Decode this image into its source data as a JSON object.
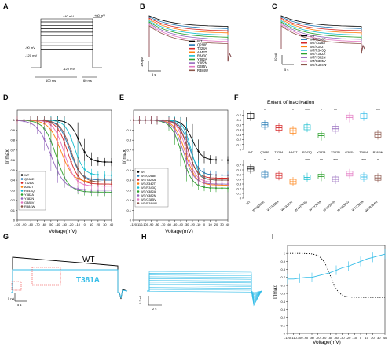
{
  "colors": {
    "WT": "#000000",
    "Q268E": "#1f77b4",
    "T328A": "#d62728",
    "A342T": "#ff7f0e",
    "R343Q": "#17becf",
    "Y382A": "#2ca02c",
    "Y382N": "#9467bd",
    "R384W": "#8c564b",
    "T381A": "#35bde8",
    "G385V": "#e377c2"
  },
  "panels": {
    "A": {
      "label": "A",
      "text_top": "+40 mV",
      "text_right": "+60 mV",
      "text_left1": "-90 mV",
      "text_left2": "-120 mV",
      "text_bottom": "-120 mV",
      "time1": "100 ms",
      "time2": "60 ms"
    },
    "B": {
      "label": "B",
      "legend": [
        "WT",
        "Q268E",
        "T328A",
        "A342T",
        "R343Q",
        "Y382A",
        "Y382N",
        "G385V",
        "R384W"
      ],
      "scale_v": "100 pA",
      "scale_t": "5 s"
    },
    "C": {
      "label": "C",
      "legend": [
        "WT",
        "WT/Q268E",
        "WT/T328A",
        "WT/A342T",
        "WT/R343Q",
        "WT/Y382A",
        "WT/Y382N",
        "WT/G385V",
        "WT/R384W"
      ],
      "scale_v": "50 pA",
      "scale_t": "5 s"
    },
    "D": {
      "label": "D",
      "ylabel": "I/Imax",
      "xlabel": "Voltage(mV)",
      "legend": [
        "WT",
        "Q268E",
        "T328A",
        "A342T",
        "R343Q",
        "Y382A",
        "Y382N",
        "G385V",
        "R384W"
      ]
    },
    "E": {
      "label": "E",
      "ylabel": "I/Imax",
      "xlabel": "Voltage(mV)",
      "legend": [
        "WT",
        "WT/Q268E",
        "WT/T328A",
        "WT/A342T",
        "WT/R343Q",
        "WT/Y382A",
        "WT/Y382N",
        "WT/G385V",
        "WT/R384W"
      ]
    },
    "F": {
      "label": "F",
      "title": "Extent of inactivation",
      "top_categories": [
        "WT",
        "Q268E",
        "T328A",
        "A342T",
        "R343Q",
        "Y382A",
        "Y382N",
        "G385V",
        "T381A",
        "R384W"
      ],
      "bottom_categories": [
        "WT",
        "WT/Q268E",
        "WT/T328A",
        "WT/A342T",
        "WT/R343Q",
        "WT/Y382A",
        "WT/Y382N",
        "WT/G385V",
        "WT/T381A",
        "WT/R384W"
      ],
      "sig_top": [
        "",
        "*",
        "",
        "*",
        "***",
        "*",
        "**",
        "",
        "",
        "***"
      ],
      "sig_bottom": [
        "",
        "*",
        "*",
        "",
        "***",
        "**",
        "***",
        "",
        "***",
        "*"
      ]
    },
    "G": {
      "label": "G",
      "trace1": "WT",
      "trace2": "T381A",
      "scale_v": "5 nA",
      "scale_t": "5 s"
    },
    "H": {
      "label": "H",
      "scale_v": "0.2 nA",
      "scale_t": "2 s"
    },
    "I": {
      "label": "I",
      "ylabel": "I/Imax",
      "xlabel": "Voltage(mV)"
    }
  },
  "chart_data": [
    {
      "panel": "D",
      "type": "line",
      "title": "",
      "xlabel": "Voltage(mV)",
      "ylabel": "I/Imax",
      "xlim": [
        -100,
        40
      ],
      "ylim": [
        0,
        1.1
      ],
      "x_ticks": [
        -100,
        -90,
        -80,
        -70,
        -60,
        -50,
        -40,
        -30,
        -20,
        -10,
        0,
        10,
        20,
        30,
        40
      ],
      "y_ticks": [
        0,
        0.1,
        0.2,
        0.3,
        0.4,
        0.5,
        0.6,
        0.7,
        0.8,
        0.9,
        1
      ],
      "series": [
        {
          "name": "WT",
          "v_half": -8,
          "k": 7,
          "min": 0.58
        },
        {
          "name": "Q268E",
          "v_half": -22,
          "k": 8,
          "min": 0.4
        },
        {
          "name": "T328A",
          "v_half": -25,
          "k": 8,
          "min": 0.36
        },
        {
          "name": "A342T",
          "v_half": -35,
          "k": 9,
          "min": 0.38
        },
        {
          "name": "R343Q",
          "v_half": -15,
          "k": 7,
          "min": 0.45
        },
        {
          "name": "Y382A",
          "v_half": -42,
          "k": 9,
          "min": 0.28
        },
        {
          "name": "Y382N",
          "v_half": -50,
          "k": 10,
          "min": 0.3
        },
        {
          "name": "G385V",
          "v_half": -30,
          "k": 8,
          "min": 0.34
        },
        {
          "name": "R384W",
          "v_half": -20,
          "k": 8,
          "min": 0.38
        }
      ]
    },
    {
      "panel": "E",
      "type": "line",
      "title": "",
      "xlabel": "Voltage(mV)",
      "ylabel": "I/Imax",
      "xlim": [
        -120,
        40
      ],
      "ylim": [
        0,
        1.1
      ],
      "x_ticks": [
        -120,
        -110,
        -100,
        -90,
        -80,
        -70,
        -60,
        -50,
        -40,
        -30,
        -20,
        -10,
        0,
        10,
        20,
        30,
        40
      ],
      "y_ticks": [
        0,
        0.1,
        0.2,
        0.3,
        0.4,
        0.5,
        0.6,
        0.7,
        0.8,
        0.9,
        1
      ],
      "series": [
        {
          "name": "WT",
          "v_half": -20,
          "k": 8,
          "min": 0.6
        },
        {
          "name": "WT/Q268E",
          "v_half": -25,
          "k": 8,
          "min": 0.45
        },
        {
          "name": "WT/T328A",
          "v_half": -28,
          "k": 8,
          "min": 0.42
        },
        {
          "name": "WT/A342T",
          "v_half": -32,
          "k": 9,
          "min": 0.35
        },
        {
          "name": "WT/R343Q",
          "v_half": -22,
          "k": 7,
          "min": 0.4
        },
        {
          "name": "WT/Y382A",
          "v_half": -38,
          "k": 9,
          "min": 0.32
        },
        {
          "name": "WT/Y382N",
          "v_half": -35,
          "k": 9,
          "min": 0.36
        },
        {
          "name": "WT/G385V",
          "v_half": -30,
          "k": 8,
          "min": 0.38
        },
        {
          "name": "WT/R384W",
          "v_half": -27,
          "k": 8,
          "min": 0.4
        }
      ]
    },
    {
      "panel": "F-top",
      "type": "box",
      "title": "Extent of inactivation",
      "ylim": [
        0,
        0.8
      ],
      "y_ticks": [
        0,
        0.1,
        0.2,
        0.3,
        0.4,
        0.5,
        0.6,
        0.7
      ],
      "categories": [
        "WT",
        "Q268E",
        "T328A",
        "A342T",
        "R343Q",
        "Y382A",
        "Y382N",
        "G385V",
        "T381A",
        "R384W"
      ],
      "values": [
        0.68,
        0.5,
        0.44,
        0.38,
        0.45,
        0.28,
        0.42,
        0.65,
        0.68,
        0.3
      ]
    },
    {
      "panel": "F-bottom",
      "type": "box",
      "ylim": [
        0,
        0.8
      ],
      "y_ticks": [
        0,
        0.1,
        0.2,
        0.3,
        0.4,
        0.5,
        0.6,
        0.7
      ],
      "categories": [
        "WT",
        "WT/Q268E",
        "WT/T328A",
        "WT/A342T",
        "WT/R343Q",
        "WT/Y382A",
        "WT/Y382N",
        "WT/G385V",
        "WT/T381A",
        "WT/R384W"
      ],
      "values": [
        0.62,
        0.5,
        0.48,
        0.35,
        0.44,
        0.46,
        0.4,
        0.52,
        0.45,
        0.43
      ]
    },
    {
      "panel": "I",
      "type": "line",
      "title": "",
      "xlabel": "Voltage(mV)",
      "ylabel": "I/Imax",
      "xlim": [
        -120,
        40
      ],
      "ylim": [
        0,
        1.1
      ],
      "x_ticks": [
        -120,
        -110,
        -100,
        -90,
        -80,
        -70,
        -60,
        -50,
        -40,
        -30,
        -20,
        -10,
        0,
        10,
        20,
        30,
        40
      ],
      "y_ticks": [
        0,
        0.1,
        0.2,
        0.3,
        0.4,
        0.5,
        0.6,
        0.7,
        0.8,
        0.9,
        1
      ],
      "series": [
        {
          "name": "WT",
          "v_half": -50,
          "k": 7,
          "min": 0.45,
          "style": "dotted"
        },
        {
          "name": "T381A",
          "x": [
            -120,
            -110,
            -100,
            -90,
            -80,
            -70,
            -60,
            -50,
            -40,
            -30,
            -20,
            -10,
            0,
            10,
            20,
            30,
            40
          ],
          "y": [
            0.68,
            0.68,
            0.69,
            0.7,
            0.7,
            0.72,
            0.74,
            0.76,
            0.79,
            0.82,
            0.84,
            0.87,
            0.9,
            0.93,
            0.95,
            0.97,
            0.99
          ]
        }
      ]
    }
  ]
}
